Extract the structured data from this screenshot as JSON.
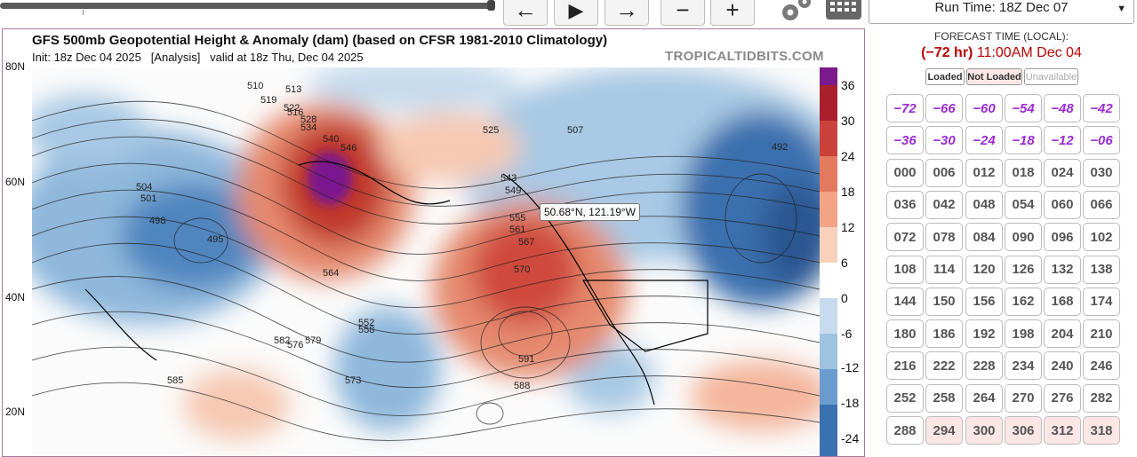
{
  "controls": {
    "back_icon": "arrow-left-icon",
    "play_icon": "play-icon",
    "forward_icon": "arrow-right-icon",
    "zoom_out_icon": "minus-icon",
    "zoom_in_icon": "plus-icon",
    "settings_icon": "gear-icon",
    "keyboard_icon": "keyboard-icon"
  },
  "run_select": {
    "value": "Run Time: 18Z Dec 07"
  },
  "map": {
    "title": "GFS 500mb Geopotential Height & Anomaly (dam) (based on CFSR 1981-2010 Climatology)",
    "subtitle": "Init: 18z Dec 04 2025   [Analysis]   valid at 18z Thu, Dec 04 2025",
    "watermark": "TROPICALTIDBITS.COM",
    "tooltip": "50.68°N, 121.19°W",
    "latitude_labels": [
      "80N",
      "60N",
      "40N",
      "20N"
    ],
    "colorbar_labels": [
      "36",
      "30",
      "24",
      "18",
      "12",
      "6",
      "0",
      "-6",
      "-12",
      "-18",
      "-24"
    ],
    "contour_labels": [
      "510",
      "513",
      "516",
      "519",
      "522",
      "525",
      "528",
      "534",
      "540",
      "543",
      "546",
      "549",
      "552",
      "555",
      "558",
      "561",
      "564",
      "567",
      "570",
      "573",
      "576",
      "579",
      "582",
      "585",
      "588",
      "591",
      "492",
      "495",
      "498",
      "501",
      "504",
      "507"
    ]
  },
  "forecast": {
    "label": "FORECAST TIME (LOCAL):",
    "hour": "(−72 hr)",
    "time": "11:00AM Dec 04"
  },
  "legend": {
    "loaded": "Loaded",
    "not_loaded": "Not Loaded",
    "unavailable": "Unavailable"
  },
  "hours_negative": [
    "−72",
    "−66",
    "−60",
    "−54",
    "−48",
    "−42",
    "−36",
    "−30",
    "−24",
    "−18",
    "−12",
    "−06"
  ],
  "hours_loaded": [
    "000",
    "006",
    "012",
    "018",
    "024",
    "030",
    "036",
    "042",
    "048",
    "054",
    "060",
    "066",
    "072",
    "078",
    "084",
    "090",
    "096",
    "102",
    "108",
    "114",
    "120",
    "126",
    "132",
    "138",
    "144",
    "150",
    "156",
    "162",
    "168",
    "174",
    "180",
    "186",
    "192",
    "198",
    "204",
    "210",
    "216",
    "222",
    "228",
    "234",
    "240",
    "246",
    "252",
    "258",
    "264",
    "270",
    "276",
    "282",
    "288"
  ],
  "hours_not_loaded": [
    "294",
    "300",
    "306",
    "312",
    "318"
  ],
  "colors": {
    "accent_purple": "#9c2bd4",
    "forecast_red": "#bb0000"
  }
}
